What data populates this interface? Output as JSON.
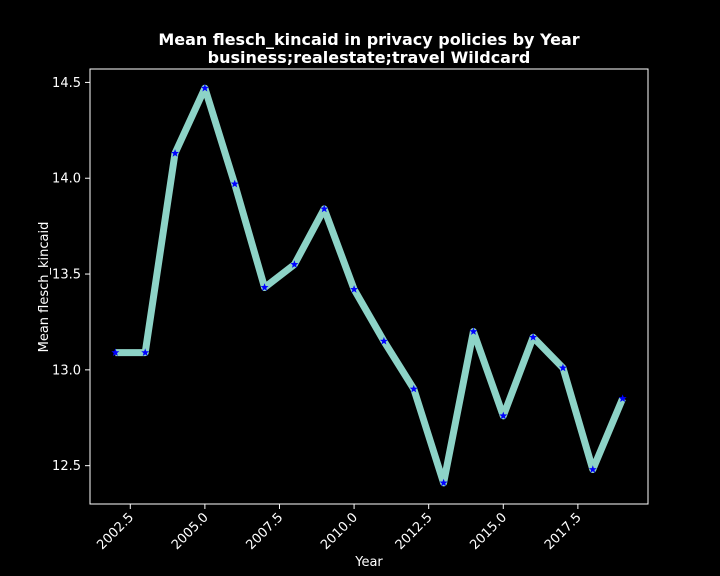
{
  "chart_data": {
    "type": "line",
    "title": "Mean flesch_kincaid in privacy policies by Year",
    "subtitle": "business;realestate;travel Wildcard",
    "xlabel": "Year",
    "ylabel": "Mean flesch_kincaid",
    "xlim": [
      2001.15,
      2019.85
    ],
    "ylim": [
      12.3,
      14.57
    ],
    "xticks": [
      2002.5,
      2005.0,
      2007.5,
      2010.0,
      2012.5,
      2015.0,
      2017.5
    ],
    "xtick_labels": [
      "2002.5",
      "2005.0",
      "2007.5",
      "2010.0",
      "2012.5",
      "2015.0",
      "2017.5"
    ],
    "yticks": [
      12.5,
      13.0,
      13.5,
      14.0,
      14.5
    ],
    "ytick_labels": [
      "12.5",
      "13.0",
      "13.5",
      "14.0",
      "14.5"
    ],
    "grid": false,
    "line_color": "#8dd3c7",
    "marker_color": "#0000ff",
    "marker": "star",
    "x": [
      2002,
      2003,
      2004,
      2005,
      2006,
      2007,
      2008,
      2009,
      2010,
      2011,
      2012,
      2013,
      2014,
      2015,
      2016,
      2017,
      2018,
      2019
    ],
    "y": [
      13.09,
      13.09,
      14.13,
      14.47,
      13.97,
      13.43,
      13.55,
      13.84,
      13.42,
      13.15,
      12.9,
      12.41,
      13.2,
      12.76,
      13.17,
      13.01,
      12.48,
      12.85
    ]
  }
}
